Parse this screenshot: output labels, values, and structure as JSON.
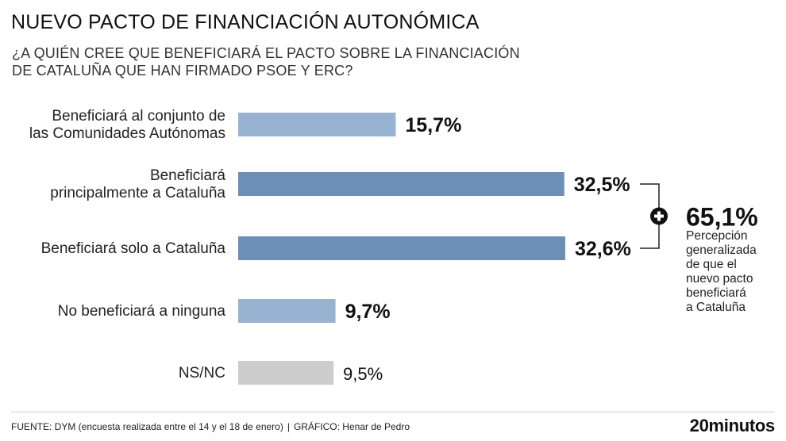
{
  "title": "NUEVO PACTO DE FINANCIACIÓN AUTONÓMICA",
  "subtitle_lines": [
    "¿A QUIÉN CREE QUE BENEFICIARÁ EL PACTO SOBRE LA FINANCIACIÓN",
    "DE CATALUÑA QUE HAN FIRMADO PSOE Y ERC?"
  ],
  "chart_data": {
    "type": "bar",
    "orientation": "horizontal",
    "title": "NUEVO PACTO DE FINANCIACIÓN AUTONÓMICA",
    "categories": [
      [
        "Beneficiará al conjunto de",
        "las Comunidades Autónomas"
      ],
      [
        "Beneficiará",
        "principalmente a Cataluña"
      ],
      [
        "Beneficiará solo a Cataluña"
      ],
      [
        "No beneficiará a ninguna"
      ],
      [
        "NS/NC"
      ]
    ],
    "values": [
      15.7,
      32.5,
      32.6,
      9.7,
      9.5
    ],
    "value_labels": [
      "15,7%",
      "32,5%",
      "32,6%",
      "9,7%",
      "9,5%"
    ],
    "bar_colors": [
      "#98b2d2",
      "#6c8fb8",
      "#6c8fb8",
      "#98b2d2",
      "#cdcdcd"
    ],
    "label_bold": [
      true,
      true,
      true,
      true,
      false
    ],
    "xlim": [
      0,
      32.6
    ],
    "grid": false,
    "annotation": {
      "sum_label": "65,1%",
      "note_lines": [
        "Percepción",
        "generalizada",
        "de que el",
        "nuevo pacto",
        "beneficiará",
        "a Cataluña"
      ],
      "bracket_color": "#222222"
    }
  },
  "footer": {
    "source": "FUENTE: DYM (encuesta realizada entre el 14 y el 18 de enero)",
    "separator": "|",
    "credit": "GRÁFICO: Henar de Pedro"
  },
  "logo": {
    "number": "20",
    "text": "minutos"
  }
}
